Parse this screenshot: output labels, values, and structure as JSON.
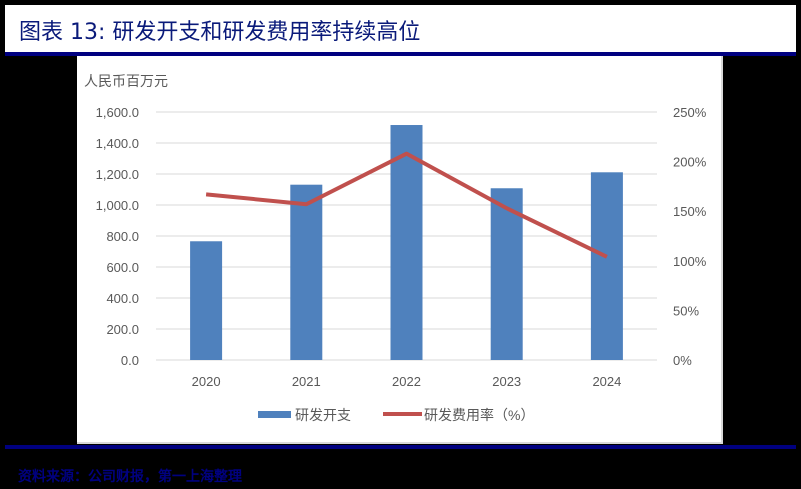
{
  "header": {
    "title": "图表 13: 研发开支和研发费用率持续高位"
  },
  "footer": {
    "source": "资料来源：公司财报，第一上海整理"
  },
  "colors": {
    "bar": "#4f81bd",
    "line": "#c0504d",
    "title_text": "#0a1a7a",
    "rule": "#000080",
    "grid": "#d9d9d9",
    "axis_text": "#595959"
  },
  "chart_data": {
    "type": "bar+line",
    "title": "研发开支和研发费用率持续高位",
    "unit_label": "人民币百万元",
    "categories": [
      "2020",
      "2021",
      "2022",
      "2023",
      "2024"
    ],
    "series": [
      {
        "name": "研发开支",
        "type": "bar",
        "axis": "left",
        "values": [
          766,
          1131,
          1516,
          1108,
          1211
        ]
      },
      {
        "name": "研发费用率（%）",
        "type": "line",
        "axis": "right",
        "values": [
          167,
          157,
          208,
          153,
          104
        ]
      }
    ],
    "left_axis": {
      "ticks": [
        "0.0",
        "200.0",
        "400.0",
        "600.0",
        "800.0",
        "1,000.0",
        "1,200.0",
        "1,400.0",
        "1,600.0"
      ],
      "ylim": [
        0,
        1600
      ]
    },
    "right_axis": {
      "ticks": [
        "0%",
        "50%",
        "100%",
        "150%",
        "200%",
        "250%"
      ],
      "ylim": [
        0,
        250
      ]
    },
    "legend": {
      "position": "bottom",
      "items": [
        "研发开支",
        "研发费用率（%）"
      ]
    },
    "grid": true
  }
}
